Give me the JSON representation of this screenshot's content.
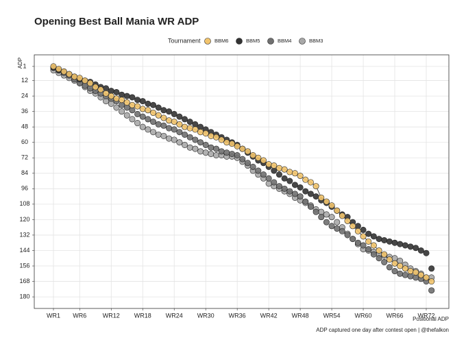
{
  "chart_data": {
    "type": "scatter",
    "title": "Opening Best Ball Mania WR ADP",
    "legend_title": "Tournament",
    "legend_position": "top",
    "ylabel": "ADP",
    "xlabel": "Positional ADP",
    "caption": "ADP captured one day after contest open | @thefalkon",
    "y_reversed": true,
    "grid": true,
    "ylim": [
      -8,
      189
    ],
    "yticks": [
      1,
      12,
      24,
      36,
      48,
      60,
      72,
      84,
      96,
      108,
      120,
      132,
      144,
      156,
      168,
      180
    ],
    "categories": [
      "WR1",
      null,
      null,
      null,
      null,
      "WR6",
      null,
      null,
      null,
      null,
      null,
      "WR12",
      null,
      null,
      null,
      null,
      null,
      "WR18",
      null,
      null,
      null,
      null,
      null,
      "WR24",
      null,
      null,
      null,
      null,
      null,
      "WR30",
      null,
      null,
      null,
      null,
      null,
      "WR36",
      null,
      null,
      null,
      null,
      null,
      "WR42",
      null,
      null,
      null,
      null,
      null,
      "WR48",
      null,
      null,
      null,
      null,
      null,
      "WR54",
      null,
      null,
      null,
      null,
      null,
      "WR60",
      null,
      null,
      null,
      null,
      null,
      "WR66",
      null,
      null,
      null,
      null,
      null,
      "WR72",
      null
    ],
    "series": [
      {
        "name": "BBM6",
        "color": "#f2c46d",
        "line": true,
        "values": [
          1,
          3,
          5,
          7,
          9,
          10,
          12,
          14,
          17,
          19,
          22,
          24,
          26,
          27,
          29,
          31,
          32,
          34,
          35,
          37,
          39,
          41,
          43,
          44,
          46,
          48,
          49,
          50,
          52,
          53,
          55,
          56,
          58,
          60,
          61,
          63,
          65,
          67,
          70,
          72,
          74,
          77,
          78,
          80,
          81,
          83,
          84,
          86,
          89,
          91,
          94,
          103,
          106,
          109,
          113,
          117,
          121,
          125,
          129,
          133,
          137,
          140,
          144,
          147,
          151,
          154,
          156,
          158,
          160,
          161,
          163,
          165,
          168
        ]
      },
      {
        "name": "BBM5",
        "color": "#333333",
        "line": false,
        "values": [
          2,
          4,
          5,
          7,
          9,
          11,
          12,
          13,
          15,
          17,
          18,
          20,
          21,
          23,
          24,
          25,
          27,
          28,
          30,
          31,
          33,
          35,
          36,
          38,
          40,
          42,
          44,
          46,
          48,
          50,
          52,
          54,
          56,
          58,
          60,
          62,
          65,
          68,
          71,
          74,
          76,
          79,
          82,
          85,
          88,
          90,
          93,
          95,
          98,
          100,
          102,
          105,
          107,
          110,
          113,
          116,
          118,
          122,
          125,
          128,
          131,
          133,
          135,
          136,
          137,
          138,
          139,
          140,
          141,
          142,
          144,
          146,
          158
        ]
      },
      {
        "name": "BBM4",
        "color": "#707070",
        "line": false,
        "values": [
          2,
          4,
          6,
          8,
          11,
          14,
          16,
          18,
          20,
          22,
          24,
          26,
          28,
          31,
          33,
          35,
          38,
          40,
          42,
          44,
          46,
          47,
          49,
          50,
          52,
          54,
          56,
          58,
          60,
          62,
          64,
          65,
          67,
          68,
          69,
          70,
          73,
          76,
          79,
          82,
          85,
          88,
          91,
          94,
          96,
          98,
          100,
          102,
          106,
          110,
          114,
          118,
          122,
          125,
          127,
          129,
          132,
          135,
          138,
          140,
          143,
          147,
          150,
          153,
          157,
          160,
          162,
          163,
          164,
          165,
          166,
          168,
          175
        ]
      },
      {
        "name": "BBM3",
        "color": "#a8a8a8",
        "line": false,
        "values": [
          4,
          6,
          8,
          10,
          12,
          14,
          17,
          20,
          22,
          25,
          28,
          30,
          33,
          36,
          39,
          42,
          45,
          48,
          50,
          52,
          54,
          55,
          57,
          58,
          60,
          62,
          64,
          65,
          67,
          68,
          69,
          70,
          70,
          71,
          71,
          72,
          75,
          78,
          82,
          85,
          88,
          92,
          94,
          96,
          98,
          100,
          103,
          105,
          107,
          109,
          112,
          114,
          116,
          118,
          122,
          126,
          131,
          135,
          139,
          143,
          144,
          145,
          147,
          148,
          149,
          150,
          152,
          155,
          158,
          160,
          162,
          165,
          165
        ]
      }
    ]
  }
}
